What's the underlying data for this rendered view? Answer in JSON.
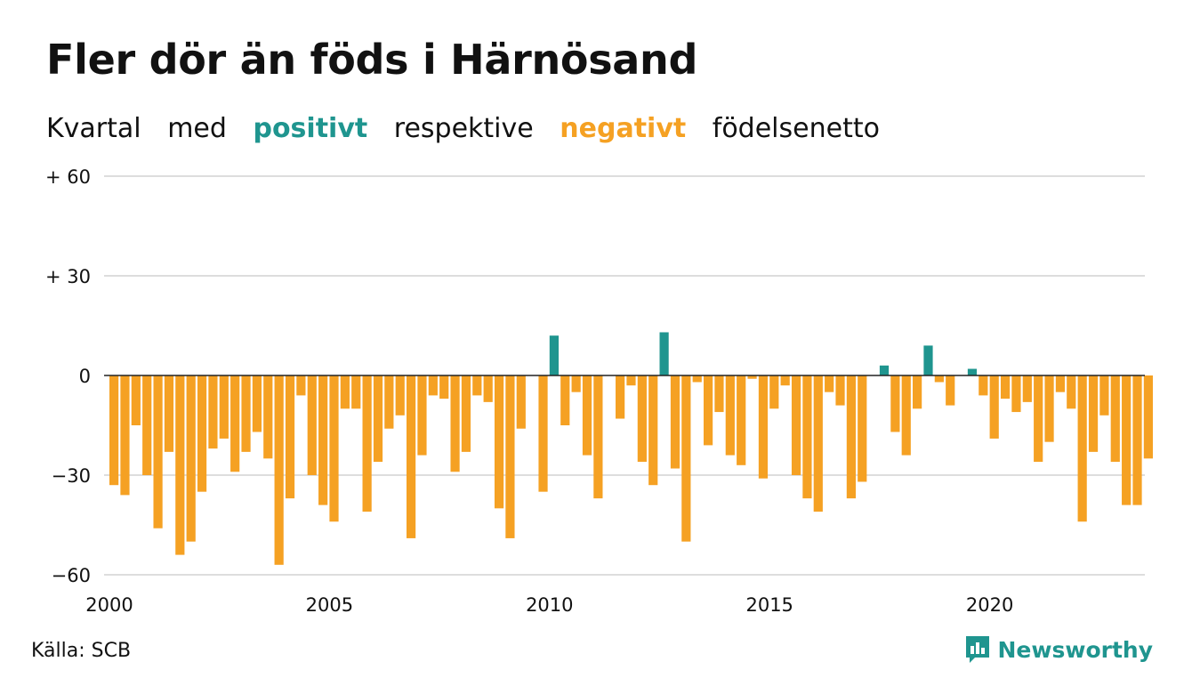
{
  "header": {
    "title": "Fler dör än föds i Härnösand",
    "subtitle_parts": [
      "Kvartal",
      "med",
      "positivt",
      "respektive",
      "negativt",
      "födelsenetto"
    ]
  },
  "footer": {
    "source": "Källa: SCB",
    "brand": "Newsworthy"
  },
  "colors": {
    "positive": "#1f958f",
    "negative": "#f5a123",
    "grid": "#dddddd",
    "zero_line": "#222222",
    "text": "#111111",
    "brand": "#1f958f"
  },
  "icons": [
    "newsworthy-logo-icon"
  ],
  "chart_data": {
    "type": "bar",
    "period": "quarterly",
    "start": "2000 Q1",
    "ylim": [
      -60,
      60
    ],
    "yticks": [
      60,
      30,
      0,
      -30,
      -60
    ],
    "ytick_labels": [
      "+ 60",
      "+ 30",
      "0",
      "−30",
      "−60"
    ],
    "x_axis_labels": [
      {
        "label": "2000",
        "year": 2000
      },
      {
        "label": "2005",
        "year": 2005
      },
      {
        "label": "2010",
        "year": 2010
      },
      {
        "label": "2015",
        "year": 2015
      },
      {
        "label": "2020",
        "year": 2020
      }
    ],
    "grid": true,
    "legend": "subtitle",
    "values": [
      -33,
      -36,
      -15,
      -30,
      -46,
      -23,
      -54,
      -50,
      -35,
      -22,
      -19,
      -29,
      -23,
      -17,
      -25,
      -57,
      -37,
      -6,
      -30,
      -39,
      -44,
      -10,
      -10,
      -41,
      -26,
      -16,
      -12,
      -49,
      -24,
      -6,
      -7,
      -29,
      -23,
      -6,
      -8,
      -40,
      -49,
      -16,
      0,
      -35,
      12,
      -15,
      -5,
      -24,
      -37,
      0,
      -13,
      -3,
      -26,
      -33,
      13,
      -28,
      -50,
      -2,
      -21,
      -11,
      -24,
      -27,
      -1,
      -31,
      -10,
      -3,
      -30,
      -37,
      -41,
      -5,
      -9,
      -37,
      -32,
      0,
      3,
      -17,
      -24,
      -10,
      9,
      -2,
      -9,
      0,
      2,
      -6,
      -19,
      -7,
      -11,
      -8,
      -26,
      -20,
      -5,
      -10,
      -44,
      -23,
      -12,
      -26,
      -39,
      -39,
      -25
    ]
  }
}
